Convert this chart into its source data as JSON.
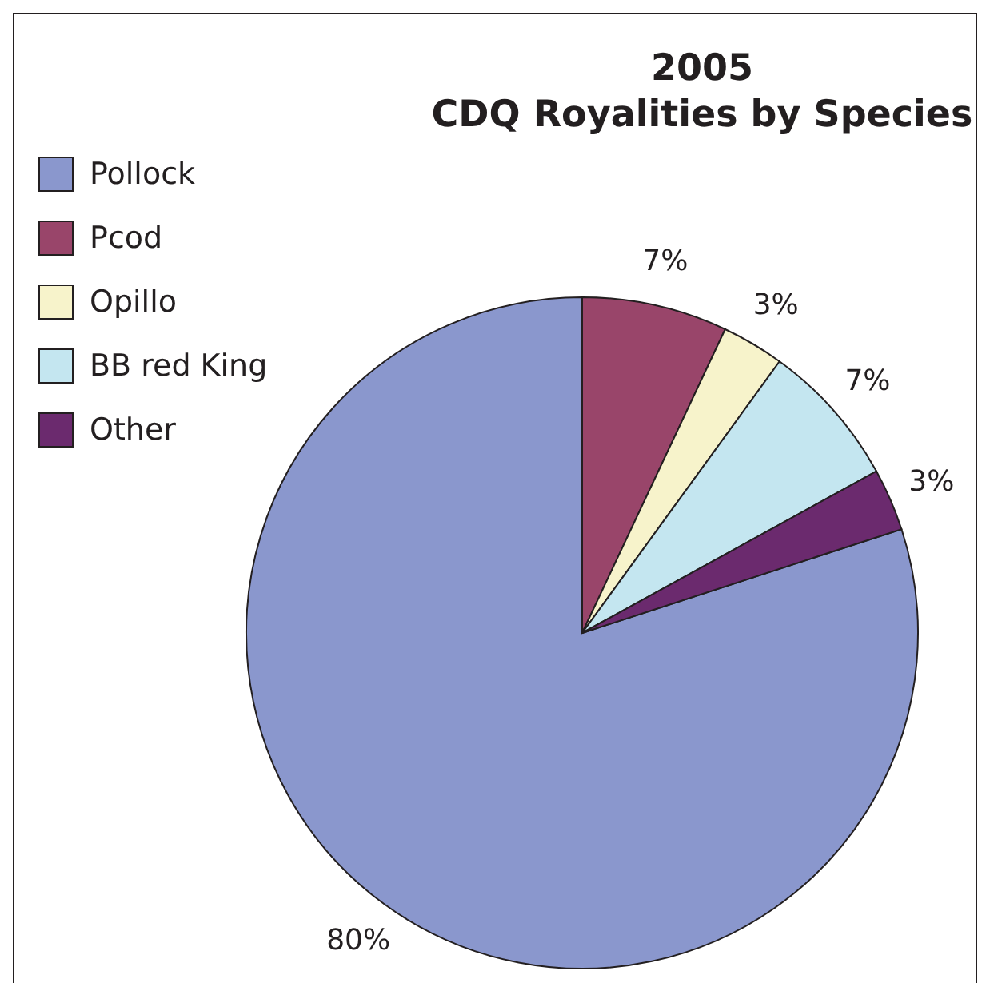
{
  "chart_data": {
    "type": "pie",
    "title": "2005\nCDQ Royalities by Species",
    "categories": [
      "Pollock",
      "Pcod",
      "Opillo",
      "BB red King",
      "Other"
    ],
    "values": [
      80,
      7,
      3,
      7,
      3
    ],
    "colors": [
      "#8a97cd",
      "#99456a",
      "#f7f3cb",
      "#c4e6f0",
      "#6b2a6e"
    ],
    "value_labels": [
      "80%",
      "7%",
      "3%",
      "7%",
      "3%"
    ],
    "legend": "top left"
  }
}
